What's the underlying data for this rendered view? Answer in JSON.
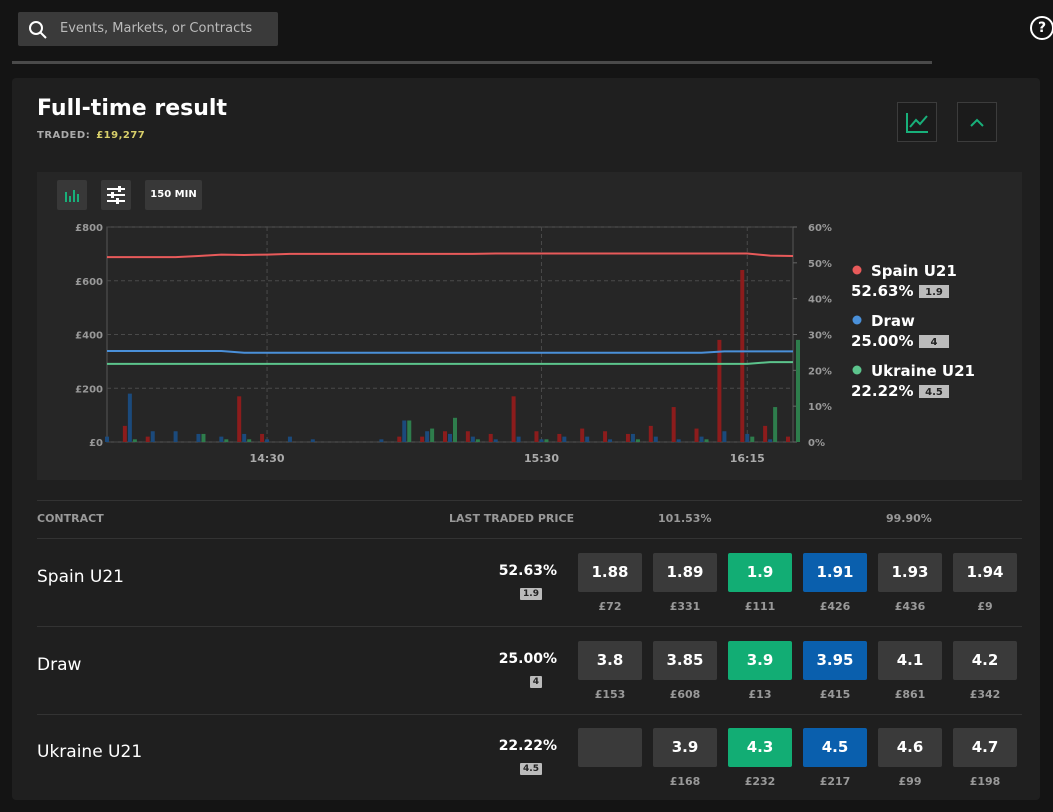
{
  "search": {
    "placeholder": "Events, Markets, or Contracts"
  },
  "help": "?",
  "market": {
    "title": "Full-time result",
    "traded_label": "TRADED:",
    "traded": "£19,277"
  },
  "chart_controls": {
    "range": "150 MIN"
  },
  "chart_data": {
    "type": "line",
    "x": [
      "13:55",
      "14:00",
      "14:05",
      "14:10",
      "14:15",
      "14:20",
      "14:25",
      "14:30",
      "14:35",
      "14:40",
      "14:45",
      "14:50",
      "14:55",
      "15:00",
      "15:05",
      "15:10",
      "15:15",
      "15:20",
      "15:25",
      "15:30",
      "15:35",
      "15:40",
      "15:45",
      "15:50",
      "15:55",
      "16:00",
      "16:05",
      "16:10",
      "16:15",
      "16:20",
      "16:25"
    ],
    "xlim": [
      "13:55",
      "16:25"
    ],
    "xticks": [
      "14:30",
      "15:30",
      "16:15"
    ],
    "ylim": [
      0,
      800
    ],
    "yticks": [
      {
        "value": 0,
        "label": "£0"
      },
      {
        "value": 200,
        "label": "£200"
      },
      {
        "value": 400,
        "label": "£400"
      },
      {
        "value": 600,
        "label": "£600"
      },
      {
        "value": 800,
        "label": "£800"
      }
    ],
    "y2lim": [
      0,
      60
    ],
    "y2ticks": [
      {
        "value": 0,
        "label": "0%"
      },
      {
        "value": 10,
        "label": "10%"
      },
      {
        "value": 20,
        "label": "20%"
      },
      {
        "value": 30,
        "label": "30%"
      },
      {
        "value": 40,
        "label": "40%"
      },
      {
        "value": 50,
        "label": "50%"
      },
      {
        "value": 60,
        "label": "60%"
      }
    ],
    "grid": true,
    "series": [
      {
        "name": "Spain U21",
        "color": "#e85a5a",
        "volume_color": "#8c1c1c",
        "axis": "y2",
        "values": [
          51.6,
          51.6,
          51.6,
          51.6,
          51.9,
          52.3,
          52.2,
          52.3,
          52.5,
          52.5,
          52.5,
          52.5,
          52.5,
          52.5,
          52.5,
          52.5,
          52.5,
          52.6,
          52.6,
          52.6,
          52.6,
          52.6,
          52.6,
          52.6,
          52.6,
          52.6,
          52.6,
          52.6,
          52.6,
          52.0,
          51.9
        ],
        "volume": [
          0,
          60,
          20,
          0,
          0,
          0,
          170,
          30,
          0,
          0,
          0,
          0,
          0,
          20,
          20,
          40,
          40,
          30,
          170,
          40,
          30,
          50,
          40,
          30,
          60,
          130,
          50,
          380,
          640,
          60,
          20
        ]
      },
      {
        "name": "Draw",
        "color": "#4a90d9",
        "volume_color": "#1b4a7c",
        "axis": "y2",
        "values": [
          25.4,
          25.4,
          25.4,
          25.4,
          25.4,
          25.4,
          24.9,
          24.9,
          24.9,
          24.9,
          24.9,
          24.9,
          24.9,
          24.9,
          24.9,
          24.9,
          24.9,
          24.9,
          24.9,
          24.9,
          24.9,
          24.9,
          24.9,
          24.9,
          24.9,
          24.9,
          24.9,
          25.3,
          25.3,
          25.3,
          25.3
        ],
        "volume": [
          20,
          180,
          40,
          40,
          30,
          20,
          30,
          10,
          20,
          10,
          0,
          0,
          10,
          80,
          40,
          30,
          20,
          10,
          20,
          10,
          20,
          20,
          10,
          30,
          20,
          10,
          20,
          40,
          30,
          10,
          0
        ]
      },
      {
        "name": "Ukraine U21",
        "color": "#5cc48c",
        "volume_color": "#2e7d4c",
        "axis": "y2",
        "values": [
          21.8,
          21.8,
          21.8,
          21.8,
          21.8,
          21.8,
          21.8,
          21.8,
          21.8,
          21.8,
          21.8,
          21.8,
          21.8,
          21.8,
          21.8,
          21.8,
          21.8,
          21.8,
          21.8,
          21.8,
          21.8,
          21.8,
          21.8,
          21.8,
          21.8,
          21.8,
          21.8,
          21.8,
          21.8,
          22.3,
          22.3
        ],
        "volume": [
          0,
          10,
          0,
          0,
          30,
          10,
          10,
          0,
          0,
          0,
          0,
          0,
          0,
          80,
          50,
          90,
          10,
          0,
          0,
          10,
          0,
          0,
          0,
          10,
          0,
          0,
          10,
          0,
          20,
          130,
          380
        ]
      }
    ]
  },
  "table": {
    "headers": [
      "CONTRACT",
      "LAST TRADED PRICE",
      "101.53%",
      "99.90%"
    ],
    "rows": [
      {
        "last": "52.63%",
        "odds": "1.9",
        "prices": [
          {
            "price": "1.88",
            "amount": "£72"
          },
          {
            "price": "1.89",
            "amount": "£331"
          },
          {
            "price": "1.9",
            "amount": "£111"
          },
          {
            "price": "1.91",
            "amount": "£426"
          },
          {
            "price": "1.93",
            "amount": "£436"
          },
          {
            "price": "1.94",
            "amount": "£9"
          }
        ]
      },
      {
        "last": "25.00%",
        "odds": "4",
        "prices": [
          {
            "price": "3.8",
            "amount": "£153"
          },
          {
            "price": "3.85",
            "amount": "£608"
          },
          {
            "price": "3.9",
            "amount": "£13"
          },
          {
            "price": "3.95",
            "amount": "£415"
          },
          {
            "price": "4.1",
            "amount": "£861"
          },
          {
            "price": "4.2",
            "amount": "£342"
          }
        ]
      },
      {
        "last": "22.22%",
        "odds": "4.5",
        "prices": [
          {
            "price": null,
            "amount": null
          },
          {
            "price": "3.9",
            "amount": "£168"
          },
          {
            "price": "4.3",
            "amount": "£232"
          },
          {
            "price": "4.5",
            "amount": "£217"
          },
          {
            "price": "4.6",
            "amount": "£99"
          },
          {
            "price": "4.7",
            "amount": "£198"
          }
        ]
      }
    ]
  }
}
